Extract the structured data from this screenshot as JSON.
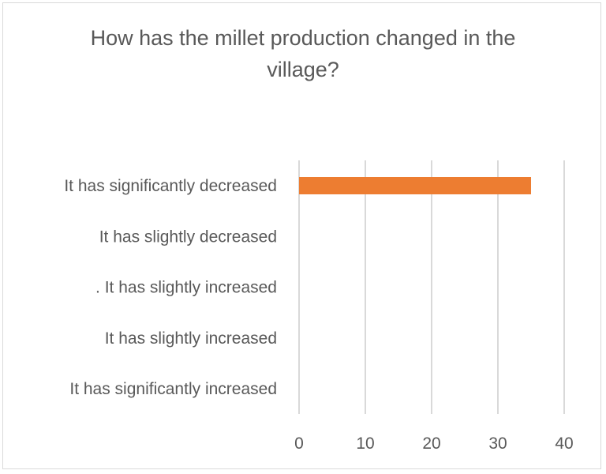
{
  "chart_data": {
    "type": "bar",
    "orientation": "horizontal",
    "title": "How has the millet production changed in the village?",
    "categories": [
      "It has significantly decreased",
      "It has slightly decreased",
      ". It has slightly increased",
      "It has slightly increased",
      "It has significantly increased"
    ],
    "values": [
      35,
      0,
      0,
      0,
      0
    ],
    "xlim": [
      0,
      40
    ],
    "xticks": [
      "0",
      "10",
      "20",
      "30",
      "40"
    ],
    "grid": true,
    "bar_color": "#ED7D31",
    "xlabel": "",
    "ylabel": ""
  }
}
